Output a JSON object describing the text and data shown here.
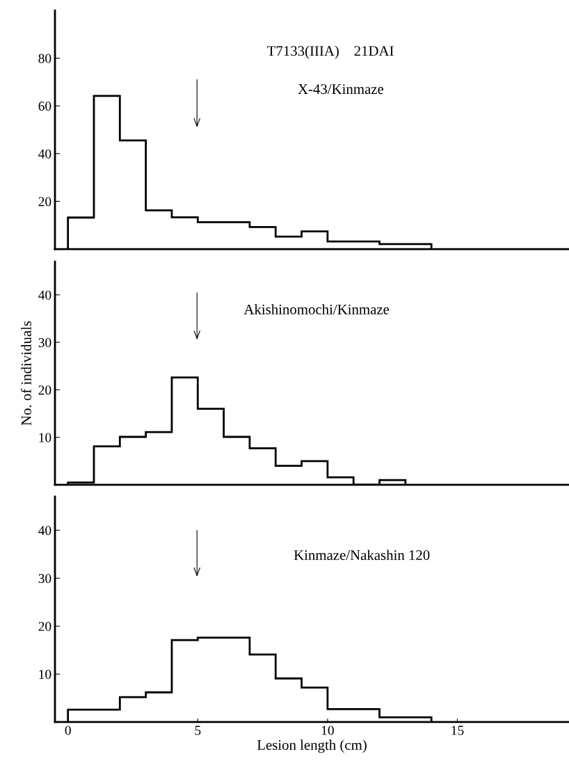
{
  "chart_data": [
    {
      "type": "histogram",
      "title": "T7133(IIIA)    21DAI",
      "subtitle": "X-43/Kinmaze",
      "bins": [
        0,
        1,
        2,
        3,
        4,
        5,
        6,
        7,
        8,
        9,
        10,
        11,
        12,
        13,
        14
      ],
      "values": [
        13.2,
        64.2,
        45.5,
        16.2,
        13.3,
        11.3,
        11.3,
        9.2,
        5.2,
        7.4,
        3.2,
        3.2,
        2.1,
        2.1
      ],
      "color": "#000000",
      "xlim": [
        -0.5,
        19.3
      ],
      "ylim": [
        0,
        100
      ],
      "yticks": [
        20,
        40,
        60,
        80
      ],
      "tick_labels": "y"
    },
    {
      "type": "histogram",
      "subtitle": "Akishinomochi/Kinmaze",
      "ylabel": "No. of individuals",
      "bins": [
        0,
        1,
        2,
        3,
        4,
        5,
        6,
        7,
        8,
        9,
        10,
        11,
        12,
        13
      ],
      "values": [
        0.5,
        8.1,
        10.1,
        11.1,
        22.6,
        16.0,
        10.1,
        7.7,
        4.0,
        5.0,
        1.6,
        0,
        1.0
      ],
      "color": "#000000",
      "xlim": [
        -0.5,
        19.3
      ],
      "ylim": [
        0,
        47
      ],
      "yticks": [
        10,
        20,
        30,
        40
      ],
      "tick_labels": "y"
    },
    {
      "type": "histogram",
      "subtitle": "Kinmaze/Nakashin 120",
      "xlabel": "Lesion length (cm)",
      "bins": [
        0,
        1,
        2,
        3,
        4,
        5,
        6,
        7,
        8,
        9,
        10,
        11,
        12,
        13,
        14
      ],
      "values": [
        2.6,
        2.6,
        5.2,
        6.2,
        17.1,
        17.6,
        17.6,
        14.1,
        9.1,
        7.2,
        2.7,
        2.7,
        1.0,
        1.0
      ],
      "color": "#000000",
      "xlim": [
        -0.5,
        19.3
      ],
      "ylim": [
        0,
        47
      ],
      "xticks": [
        0,
        5,
        10,
        15
      ],
      "yticks": [
        10,
        20,
        30,
        40
      ]
    }
  ]
}
